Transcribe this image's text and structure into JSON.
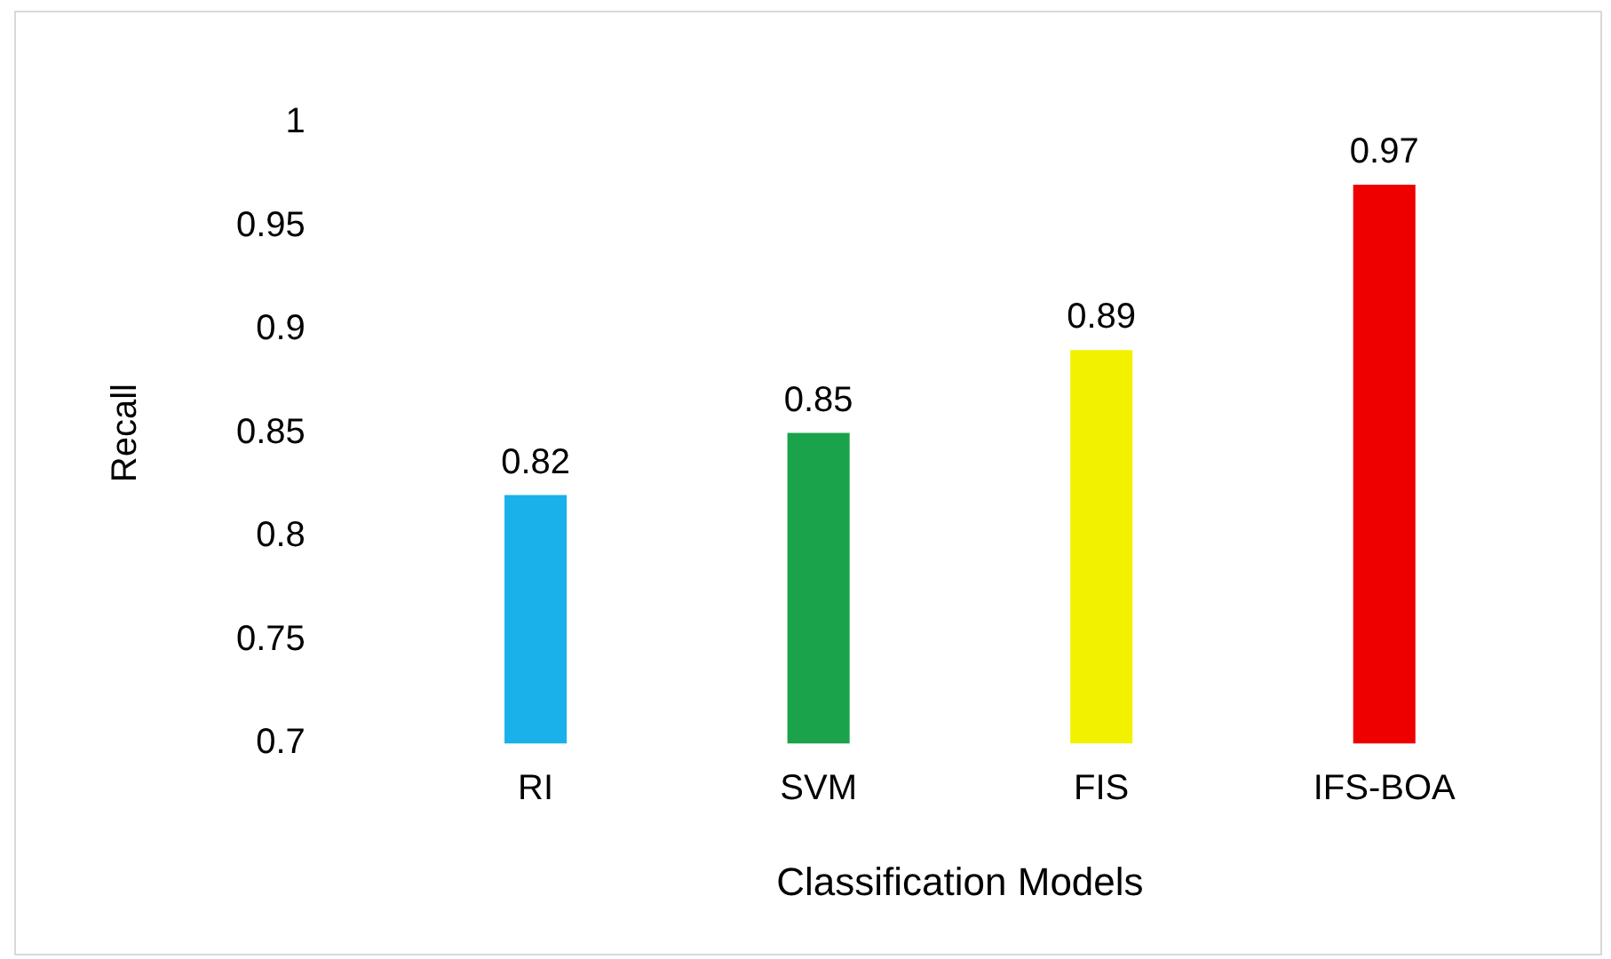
{
  "chart_data": {
    "type": "bar",
    "xlabel": "Classification Models",
    "ylabel": "Recall",
    "categories": [
      "RI",
      "SVM",
      "FIS",
      "IFS-BOA"
    ],
    "values": [
      0.82,
      0.85,
      0.89,
      0.97
    ],
    "colors": [
      "#1ab0ea",
      "#1aa34a",
      "#f2f200",
      "#ee0000"
    ],
    "ylim": [
      0.7,
      1
    ],
    "yticks": [
      0.7,
      0.75,
      0.8,
      0.85,
      0.9,
      0.95,
      1
    ],
    "grid": false,
    "legend": false,
    "data_labels": true
  }
}
